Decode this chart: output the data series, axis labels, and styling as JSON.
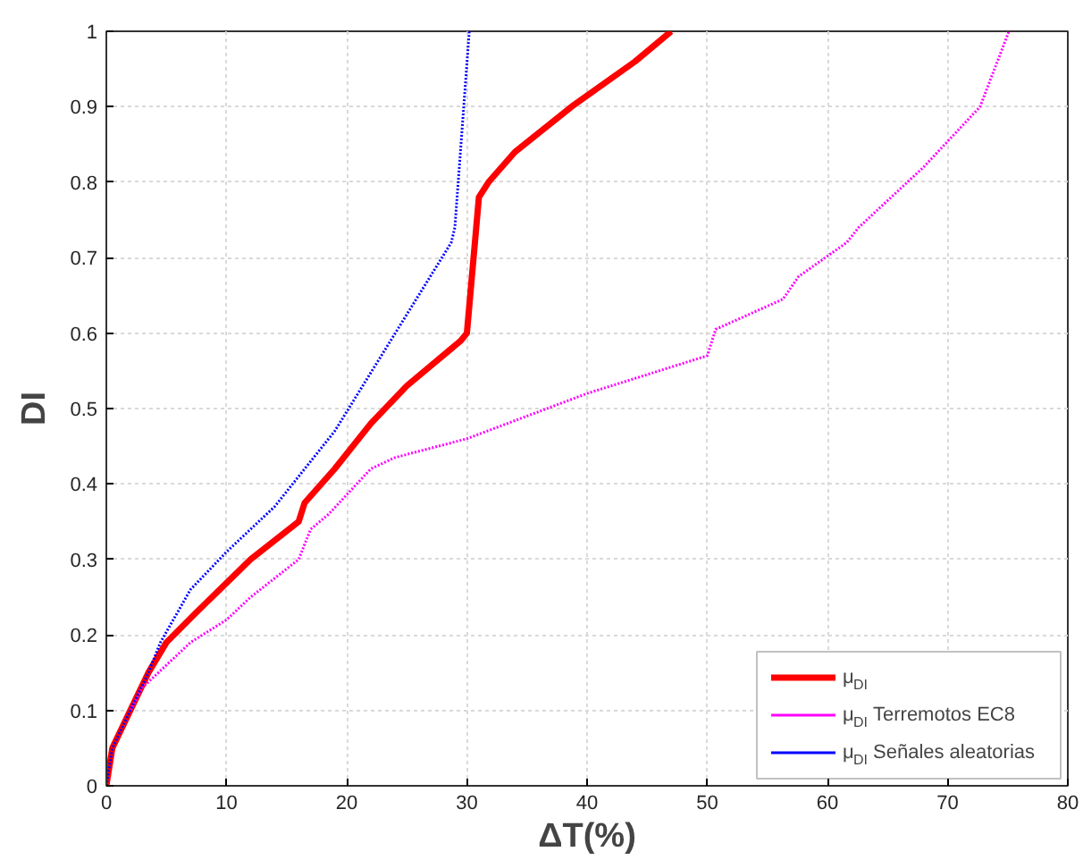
{
  "chart_data": {
    "type": "line",
    "xlabel": "ΔT(%)",
    "ylabel": "DI",
    "xlim": [
      0,
      80
    ],
    "ylim": [
      0,
      1
    ],
    "xticks": [
      0,
      10,
      20,
      30,
      40,
      50,
      60,
      70,
      80
    ],
    "yticks": [
      0,
      0.1,
      0.2,
      0.3,
      0.4,
      0.5,
      0.6,
      0.7,
      0.8,
      0.9,
      1
    ],
    "grid": true,
    "legend": "bottom right",
    "series": [
      {
        "name": "μ$_{DI}$",
        "color": "#ff0000",
        "line_style": "solid",
        "x": [
          0,
          0.5,
          2,
          3.5,
          5,
          7.5,
          12,
          16,
          16.5,
          19,
          22,
          25,
          29.5,
          30,
          31,
          31.8,
          34,
          38.7,
          44,
          47
        ],
        "values": [
          0,
          0.05,
          0.1,
          0.15,
          0.19,
          0.23,
          0.3,
          0.35,
          0.375,
          0.42,
          0.48,
          0.53,
          0.59,
          0.6,
          0.78,
          0.8,
          0.84,
          0.9,
          0.96,
          1.0
        ]
      },
      {
        "name": "μ$_{DI}$ Terremotos EC8",
        "color": "#ff00ff",
        "line_style": "dotted",
        "x": [
          2,
          3,
          7,
          10,
          12,
          16,
          17,
          18.5,
          22,
          24,
          30,
          35,
          40,
          45,
          50,
          50.7,
          56.3,
          57.6,
          61.6,
          62.6,
          68,
          72.7,
          75.1
        ],
        "values": [
          0.1,
          0.13,
          0.19,
          0.22,
          0.25,
          0.3,
          0.34,
          0.36,
          0.42,
          0.435,
          0.46,
          0.49,
          0.52,
          0.545,
          0.57,
          0.605,
          0.645,
          0.675,
          0.72,
          0.74,
          0.82,
          0.9,
          1.0
        ]
      },
      {
        "name": "μ$_{DI}$ Señales aleatorias",
        "color": "#0000ff",
        "line_style": "dotted",
        "x": [
          0,
          0.5,
          2,
          3.5,
          4.5,
          7,
          10,
          14,
          19,
          28.7,
          29,
          30.2
        ],
        "values": [
          0,
          0.05,
          0.1,
          0.15,
          0.19,
          0.26,
          0.31,
          0.37,
          0.47,
          0.72,
          0.74,
          1.0
        ]
      }
    ]
  }
}
